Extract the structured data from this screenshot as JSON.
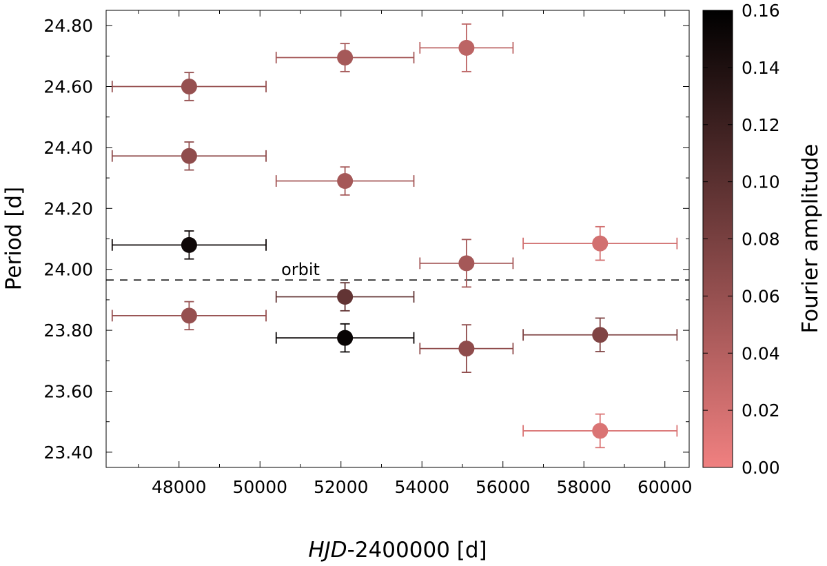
{
  "chart_data": {
    "type": "scatter",
    "title": "",
    "xlabel_italic": "HJD",
    "xlabel_rest": "-2400000 [d]",
    "ylabel": "Period [d]",
    "colorbar_label": "Fourier amplitude",
    "xlim": [
      46200,
      60600
    ],
    "ylim": [
      23.35,
      24.85
    ],
    "x_ticks": [
      48000,
      50000,
      52000,
      54000,
      56000,
      58000,
      60000
    ],
    "x_tick_labels": [
      "48000",
      "50000",
      "52000",
      "54000",
      "56000",
      "58000",
      "60000"
    ],
    "y_ticks": [
      23.4,
      23.6,
      23.8,
      24.0,
      24.2,
      24.4,
      24.6,
      24.8
    ],
    "y_tick_labels": [
      "23.40",
      "23.60",
      "23.80",
      "24.00",
      "24.20",
      "24.40",
      "24.60",
      "24.80"
    ],
    "colorbar_range": [
      0.0,
      0.16
    ],
    "colorbar_ticks": [
      0.0,
      0.02,
      0.04,
      0.06,
      0.08,
      0.1,
      0.12,
      0.14,
      0.16
    ],
    "colorbar_tick_labels": [
      "0.00",
      "0.02",
      "0.04",
      "0.06",
      "0.08",
      "0.10",
      "0.12",
      "0.14",
      "0.16"
    ],
    "colormap": [
      "#f08080",
      "#000000"
    ],
    "reference_line": {
      "y": 23.965,
      "style": "dashed",
      "label": "orbit",
      "label_x": 51000
    },
    "points": [
      {
        "x": 48250,
        "xerr": 1900,
        "y": 24.6,
        "yerr": 0.046,
        "amplitude": 0.06
      },
      {
        "x": 48250,
        "xerr": 1900,
        "y": 24.372,
        "yerr": 0.046,
        "amplitude": 0.065
      },
      {
        "x": 48250,
        "xerr": 1900,
        "y": 24.08,
        "yerr": 0.046,
        "amplitude": 0.15
      },
      {
        "x": 48250,
        "xerr": 1900,
        "y": 23.848,
        "yerr": 0.046,
        "amplitude": 0.06
      },
      {
        "x": 52100,
        "xerr": 1700,
        "y": 24.695,
        "yerr": 0.046,
        "amplitude": 0.05
      },
      {
        "x": 52100,
        "xerr": 1700,
        "y": 24.29,
        "yerr": 0.046,
        "amplitude": 0.05
      },
      {
        "x": 52100,
        "xerr": 1700,
        "y": 23.91,
        "yerr": 0.046,
        "amplitude": 0.095
      },
      {
        "x": 52100,
        "xerr": 1700,
        "y": 23.775,
        "yerr": 0.046,
        "amplitude": 0.155
      },
      {
        "x": 55100,
        "xerr": 1150,
        "y": 24.727,
        "yerr": 0.078,
        "amplitude": 0.035
      },
      {
        "x": 55100,
        "xerr": 1150,
        "y": 24.02,
        "yerr": 0.078,
        "amplitude": 0.05
      },
      {
        "x": 55100,
        "xerr": 1150,
        "y": 23.74,
        "yerr": 0.078,
        "amplitude": 0.065
      },
      {
        "x": 58400,
        "xerr": 1900,
        "y": 24.085,
        "yerr": 0.055,
        "amplitude": 0.02
      },
      {
        "x": 58400,
        "xerr": 1900,
        "y": 23.785,
        "yerr": 0.055,
        "amplitude": 0.075
      },
      {
        "x": 58400,
        "xerr": 1900,
        "y": 23.47,
        "yerr": 0.055,
        "amplitude": 0.015
      }
    ]
  }
}
